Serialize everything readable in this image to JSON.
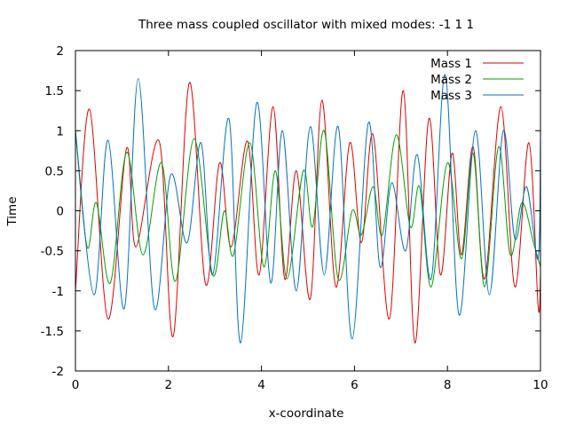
{
  "chart_data": {
    "type": "line",
    "title": "Three mass coupled oscillator with mixed modes: -1 1 1",
    "xlabel": "x-coordinate",
    "ylabel": "Time",
    "xlim": [
      0,
      10
    ],
    "ylim": [
      -2,
      2
    ],
    "x_ticks": [
      0,
      2,
      4,
      6,
      8,
      10
    ],
    "x_tick_labels": [
      "0",
      "2",
      "4",
      "6",
      "8",
      "10"
    ],
    "y_ticks": [
      -2,
      -1.5,
      -1,
      -0.5,
      0,
      0.5,
      1,
      1.5,
      2
    ],
    "y_tick_labels": [
      "-2",
      "-1.5",
      "-1",
      "-0.5",
      "0",
      "0.5",
      "1",
      "1.5",
      "2"
    ],
    "grid": false,
    "legend_position": "top-right",
    "series": [
      {
        "name": "Mass 1",
        "color": "#dd0000",
        "points": [
          [
            0.0,
            -1.0
          ],
          [
            0.3,
            1.27
          ],
          [
            0.7,
            -1.35
          ],
          [
            1.1,
            0.78
          ],
          [
            1.3,
            -0.45
          ],
          [
            1.8,
            0.87
          ],
          [
            2.1,
            -1.57
          ],
          [
            2.45,
            1.6
          ],
          [
            2.8,
            -0.92
          ],
          [
            3.1,
            0.6
          ],
          [
            3.35,
            -0.45
          ],
          [
            3.7,
            0.87
          ],
          [
            3.95,
            -0.8
          ],
          [
            4.25,
            1.3
          ],
          [
            4.5,
            -0.85
          ],
          [
            4.75,
            0.5
          ],
          [
            5.05,
            -1.1
          ],
          [
            5.3,
            1.38
          ],
          [
            5.6,
            -0.95
          ],
          [
            5.9,
            0.85
          ],
          [
            6.15,
            -0.4
          ],
          [
            6.4,
            0.95
          ],
          [
            6.75,
            -1.35
          ],
          [
            7.05,
            1.5
          ],
          [
            7.3,
            -1.65
          ],
          [
            7.6,
            1.15
          ],
          [
            7.85,
            -0.8
          ],
          [
            8.1,
            0.72
          ],
          [
            8.3,
            -0.55
          ],
          [
            8.55,
            0.8
          ],
          [
            8.8,
            -0.85
          ],
          [
            9.15,
            1.3
          ],
          [
            9.45,
            -0.95
          ],
          [
            9.75,
            0.85
          ],
          [
            9.95,
            -1.2
          ],
          [
            10.0,
            -0.8
          ]
        ]
      },
      {
        "name": "Mass 2",
        "color": "#00a000",
        "points": [
          [
            0.0,
            1.0
          ],
          [
            0.25,
            -0.45
          ],
          [
            0.45,
            0.1
          ],
          [
            0.75,
            -0.9
          ],
          [
            1.1,
            0.73
          ],
          [
            1.45,
            -0.55
          ],
          [
            1.85,
            0.6
          ],
          [
            2.15,
            -0.88
          ],
          [
            2.55,
            0.9
          ],
          [
            2.95,
            -0.8
          ],
          [
            3.2,
            0.0
          ],
          [
            3.4,
            -0.55
          ],
          [
            3.75,
            0.85
          ],
          [
            4.05,
            -0.7
          ],
          [
            4.3,
            0.5
          ],
          [
            4.55,
            -0.85
          ],
          [
            4.9,
            0.5
          ],
          [
            5.1,
            -0.2
          ],
          [
            5.35,
            1.0
          ],
          [
            5.65,
            -0.85
          ],
          [
            5.95,
            0.0
          ],
          [
            6.15,
            -0.3
          ],
          [
            6.4,
            0.3
          ],
          [
            6.6,
            -0.3
          ],
          [
            6.9,
            0.95
          ],
          [
            7.2,
            -0.2
          ],
          [
            7.4,
            0.3
          ],
          [
            7.65,
            -0.95
          ],
          [
            8.0,
            0.6
          ],
          [
            8.3,
            -0.6
          ],
          [
            8.55,
            0.72
          ],
          [
            8.8,
            -0.95
          ],
          [
            9.1,
            0.8
          ],
          [
            9.35,
            -0.55
          ],
          [
            9.6,
            0.1
          ],
          [
            9.85,
            -0.4
          ],
          [
            10.0,
            -0.7
          ]
        ]
      },
      {
        "name": "Mass 3",
        "color": "#0072c0",
        "points": [
          [
            0.0,
            1.0
          ],
          [
            0.4,
            -1.05
          ],
          [
            0.7,
            0.88
          ],
          [
            1.05,
            -1.22
          ],
          [
            1.35,
            1.65
          ],
          [
            1.7,
            -1.22
          ],
          [
            2.05,
            0.45
          ],
          [
            2.4,
            -0.4
          ],
          [
            2.7,
            0.85
          ],
          [
            2.95,
            -0.8
          ],
          [
            3.3,
            1.15
          ],
          [
            3.55,
            -1.65
          ],
          [
            3.9,
            1.35
          ],
          [
            4.2,
            -0.9
          ],
          [
            4.45,
            1.0
          ],
          [
            4.75,
            -1.0
          ],
          [
            5.05,
            1.05
          ],
          [
            5.35,
            -0.8
          ],
          [
            5.65,
            1.05
          ],
          [
            5.95,
            -1.6
          ],
          [
            6.3,
            1.1
          ],
          [
            6.55,
            -0.7
          ],
          [
            6.8,
            0.35
          ],
          [
            7.1,
            -0.5
          ],
          [
            7.35,
            0.7
          ],
          [
            7.65,
            -0.85
          ],
          [
            7.95,
            1.7
          ],
          [
            8.25,
            -1.3
          ],
          [
            8.6,
            1.0
          ],
          [
            8.9,
            -1.05
          ],
          [
            9.2,
            1.0
          ],
          [
            9.45,
            -0.35
          ],
          [
            9.7,
            0.3
          ],
          [
            9.95,
            -0.6
          ],
          [
            10.0,
            0.9
          ]
        ]
      }
    ]
  }
}
